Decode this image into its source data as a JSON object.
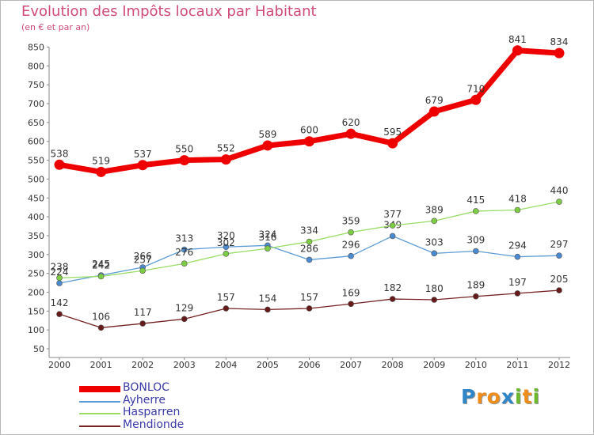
{
  "chart_data": {
    "type": "line",
    "title": "Evolution des Impôts locaux par Habitant",
    "subtitle": "(en € et par an)",
    "xlabel": "",
    "ylabel": "",
    "categories": [
      "2000",
      "2001",
      "2002",
      "2003",
      "2004",
      "2005",
      "2006",
      "2007",
      "2008",
      "2009",
      "2010",
      "2011",
      "2012"
    ],
    "ylim": [
      50,
      850
    ],
    "yticks": [
      "50",
      "100",
      "150",
      "200",
      "250",
      "300",
      "350",
      "400",
      "450",
      "500",
      "550",
      "600",
      "650",
      "700",
      "750",
      "800",
      "850"
    ],
    "grid": false,
    "legend_position": "bottom-left",
    "series": [
      {
        "name": "BONLOC",
        "color": "#ee0000",
        "values": [
          538,
          519,
          537,
          550,
          552,
          589,
          600,
          620,
          595,
          679,
          710,
          841,
          834
        ]
      },
      {
        "name": "Ayherre",
        "color": "#5b9bd5",
        "values": [
          224,
          245,
          266,
          313,
          320,
          324,
          286,
          296,
          349,
          303,
          309,
          294,
          297
        ]
      },
      {
        "name": "Hasparren",
        "color": "#99dd66",
        "values": [
          238,
          242,
          257,
          276,
          302,
          316,
          334,
          359,
          377,
          389,
          415,
          418,
          440
        ]
      },
      {
        "name": "Mendionde",
        "color": "#772222",
        "values": [
          142,
          106,
          117,
          129,
          157,
          154,
          157,
          169,
          182,
          180,
          189,
          197,
          205
        ]
      }
    ]
  },
  "brand": {
    "letters": [
      "P",
      "r",
      "o",
      "x",
      "i",
      "t",
      "i"
    ],
    "colors": [
      "#2e86c8",
      "#f08c1a",
      "#f08c1a",
      "#2e86c8",
      "#6bb82a",
      "#f08c1a",
      "#6bb82a"
    ]
  }
}
